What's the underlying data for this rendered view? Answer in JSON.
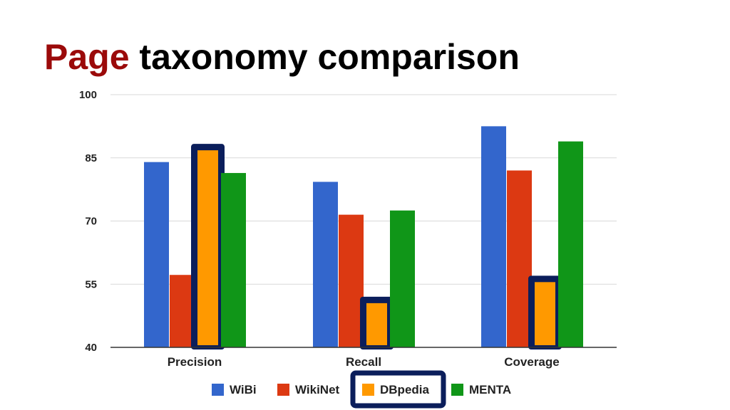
{
  "slide": {
    "title_accent": "Page",
    "title_rest": "taxonomy comparison"
  },
  "colors": {
    "title_accent": "#9b0a0a",
    "highlight_border": "#0b1e5b",
    "gridline": "#d9d9d9",
    "axis": "#333333"
  },
  "chart_data": {
    "type": "bar",
    "categories": [
      "Precision",
      "Recall",
      "Coverage"
    ],
    "series": [
      {
        "name": "WiBi",
        "color": "#3366cc",
        "values": [
          84,
          79.3,
          92.5
        ]
      },
      {
        "name": "WikiNet",
        "color": "#dc3912",
        "values": [
          57.2,
          71.5,
          82
        ]
      },
      {
        "name": "DBpedia",
        "color": "#ff9900",
        "values": [
          87.3,
          51,
          56
        ]
      },
      {
        "name": "MENTA",
        "color": "#109618",
        "values": [
          81.4,
          72.5,
          88.9
        ]
      }
    ],
    "yticks": [
      "40",
      "55",
      "70",
      "85",
      "100"
    ],
    "ylim": [
      40,
      100
    ],
    "grid": true,
    "legend_position": "bottom",
    "highlighted_series": "DBpedia",
    "title": "",
    "xlabel": "",
    "ylabel": ""
  }
}
